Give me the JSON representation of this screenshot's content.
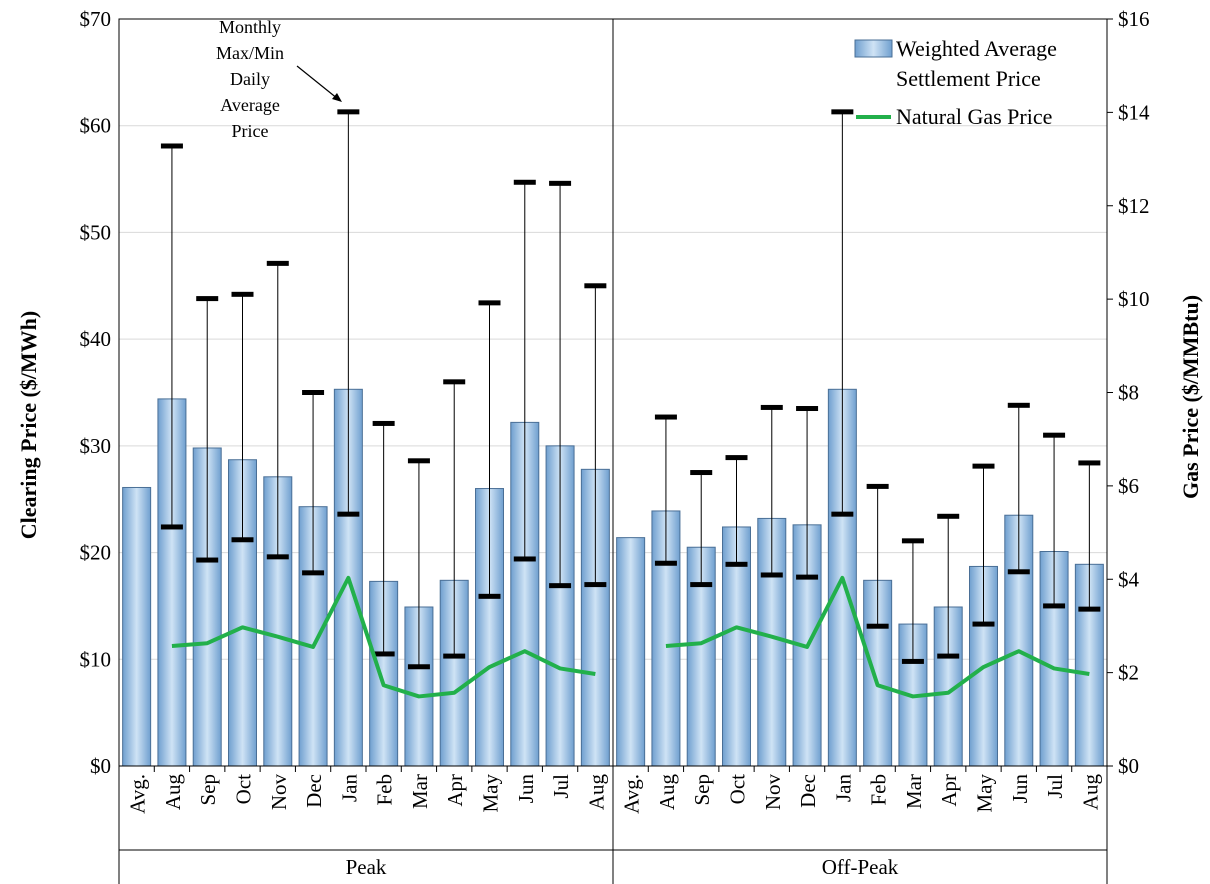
{
  "chart_data": {
    "type": "bar",
    "y_left": {
      "label": "Clearing Price ($/MWh)",
      "range": [
        0,
        70
      ],
      "ticks": [
        "$0",
        "$10",
        "$20",
        "$30",
        "$40",
        "$50",
        "$60",
        "$70"
      ]
    },
    "y_right": {
      "label": "Gas Price ($/MMBtu)",
      "range": [
        0,
        16
      ],
      "ticks": [
        "$0",
        "$2",
        "$4",
        "$6",
        "$8",
        "$10",
        "$12",
        "$14",
        "$16"
      ]
    },
    "grid": true,
    "legend_position": "top-right",
    "legend": [
      {
        "label": "Weighted Average Settlement Price",
        "line1": "Weighted Average",
        "line2": "Settlement Price",
        "type": "bar",
        "color": "#9DC3E6"
      },
      {
        "label": "Natural Gas Price",
        "type": "line",
        "color": "#22B04B"
      }
    ],
    "annotation": {
      "lines": [
        "Monthly",
        "Max/Min",
        "Daily",
        "Average",
        "Price"
      ]
    },
    "groups": [
      {
        "name": "Peak",
        "categories": [
          "Avg.",
          "Aug",
          "Sep",
          "Oct",
          "Nov",
          "Dec",
          "Jan",
          "Feb",
          "Mar",
          "Apr",
          "May",
          "Jun",
          "Jul",
          "Aug"
        ],
        "settlement": [
          26.1,
          34.4,
          29.8,
          28.7,
          27.1,
          24.3,
          35.3,
          17.3,
          14.9,
          17.4,
          26.0,
          32.2,
          30.0,
          27.8
        ],
        "daily_max": [
          null,
          58.1,
          43.8,
          44.2,
          47.1,
          35.0,
          61.3,
          32.1,
          28.6,
          36.0,
          43.4,
          54.7,
          54.6,
          45.0
        ],
        "daily_min": [
          null,
          22.4,
          19.3,
          21.2,
          19.6,
          18.1,
          23.6,
          10.5,
          9.3,
          10.3,
          15.9,
          19.4,
          16.9,
          17.0
        ],
        "gas_price": [
          null,
          2.57,
          2.63,
          2.97,
          2.77,
          2.55,
          4.03,
          1.73,
          1.49,
          1.57,
          2.12,
          2.46,
          2.09,
          1.97
        ]
      },
      {
        "name": "Off-Peak",
        "categories": [
          "Avg.",
          "Aug",
          "Sep",
          "Oct",
          "Nov",
          "Dec",
          "Jan",
          "Feb",
          "Mar",
          "Apr",
          "May",
          "Jun",
          "Jul",
          "Aug"
        ],
        "settlement": [
          21.4,
          23.9,
          20.5,
          22.4,
          23.2,
          22.6,
          35.3,
          17.4,
          13.3,
          14.9,
          18.7,
          23.5,
          20.1,
          18.9
        ],
        "daily_max": [
          null,
          32.7,
          27.5,
          28.9,
          33.6,
          33.5,
          61.3,
          26.2,
          21.1,
          23.4,
          28.1,
          33.8,
          31.0,
          28.4
        ],
        "daily_min": [
          null,
          19.0,
          17.0,
          18.9,
          17.9,
          17.7,
          23.6,
          13.1,
          9.8,
          10.3,
          13.3,
          18.2,
          15.0,
          14.7
        ],
        "gas_price": [
          null,
          2.57,
          2.63,
          2.97,
          2.77,
          2.55,
          4.03,
          1.73,
          1.49,
          1.57,
          2.12,
          2.46,
          2.09,
          1.97
        ]
      }
    ]
  }
}
